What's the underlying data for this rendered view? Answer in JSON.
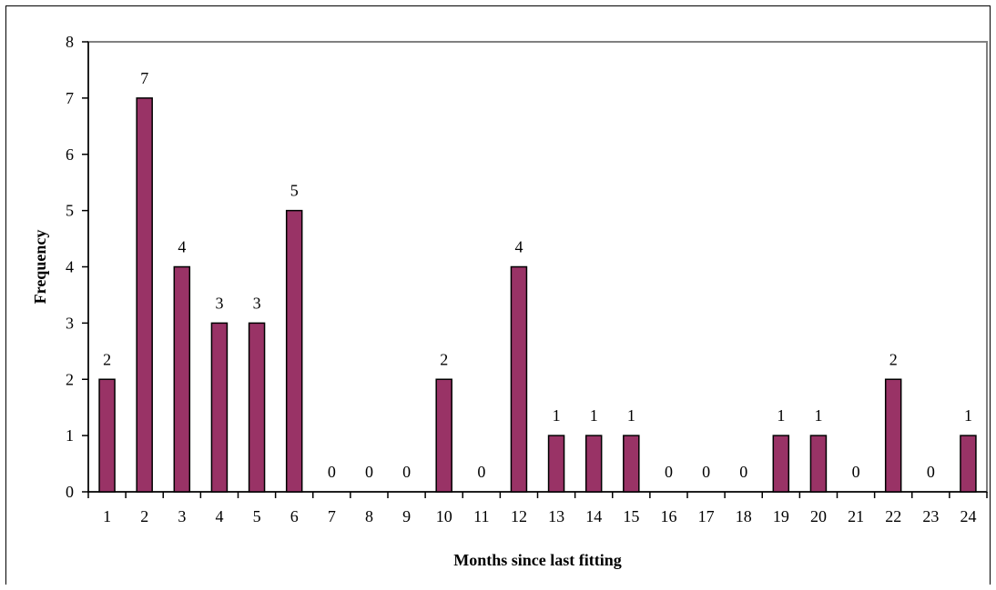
{
  "chart_data": {
    "type": "bar",
    "title": "",
    "xlabel": "Months since last fitting",
    "ylabel": "Frequency",
    "categories": [
      "1",
      "2",
      "3",
      "4",
      "5",
      "6",
      "7",
      "8",
      "9",
      "10",
      "11",
      "12",
      "13",
      "14",
      "15",
      "16",
      "17",
      "18",
      "19",
      "20",
      "21",
      "22",
      "23",
      "24"
    ],
    "values": [
      2,
      7,
      4,
      3,
      3,
      5,
      0,
      0,
      0,
      2,
      0,
      4,
      1,
      1,
      1,
      0,
      0,
      0,
      1,
      1,
      0,
      2,
      0,
      1
    ],
    "ylim": [
      0,
      8
    ],
    "yticks": [
      0,
      1,
      2,
      3,
      4,
      5,
      6,
      7,
      8
    ],
    "grid": false,
    "legend": "none",
    "show_data_labels": true,
    "colors": {
      "bar": "#993366",
      "bar_edge": "#000000",
      "plot_border": "#808080",
      "axis": "#000000"
    }
  }
}
